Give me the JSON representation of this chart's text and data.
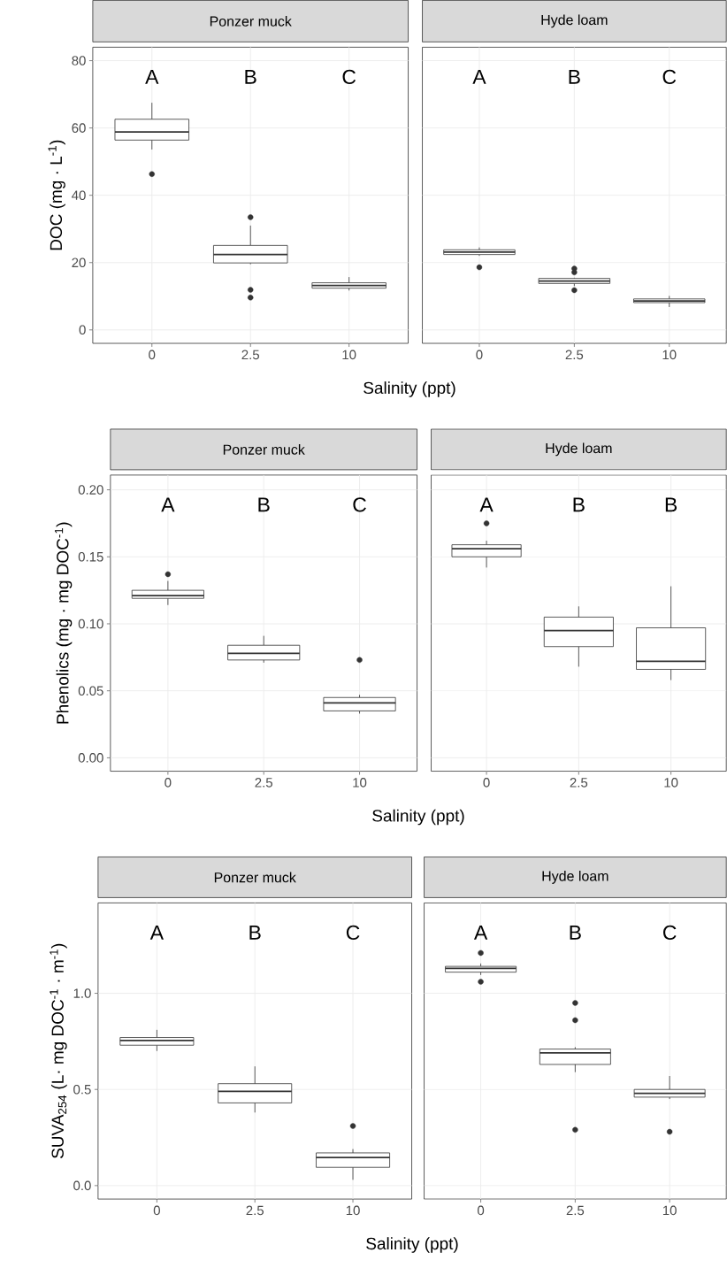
{
  "chart_data": [
    {
      "type": "box",
      "title": "Ponzer muck",
      "xlabel": "Salinity (ppt)",
      "ylabel": "DOC (mg · L$^{-1}$)",
      "categories": [
        "0",
        "2.5",
        "10"
      ],
      "color": "#333333",
      "grid": true,
      "ylim": [
        -4,
        84
      ],
      "yticks": [
        0,
        20,
        40,
        60,
        80
      ],
      "boxes": [
        {
          "low": 53.6,
          "q1": 56.4,
          "median": 58.8,
          "q3": 62.6,
          "high": 67.5,
          "outliers": [
            46.3
          ]
        },
        {
          "low": 19.5,
          "q1": 19.9,
          "median": 22.4,
          "q3": 25.1,
          "high": 31,
          "outliers": [
            33.5,
            11.9,
            9.6
          ]
        },
        {
          "low": 11.7,
          "q1": 12.4,
          "median": 13.2,
          "q3": 14.0,
          "high": 15.7
        }
      ],
      "annotations": [
        "A",
        "B",
        "C"
      ]
    },
    {
      "type": "box",
      "title": "Hyde loam",
      "categories": [
        "0",
        "2.5",
        "10"
      ],
      "color": "#333333",
      "grid": true,
      "tick_labels": "x",
      "ylim": [
        -4,
        84
      ],
      "yticks": [
        0,
        20,
        40,
        60,
        80
      ],
      "boxes": [
        {
          "low": 22.0,
          "q1": 22.4,
          "median": 23.1,
          "q3": 23.8,
          "high": 24.5,
          "outliers": [
            18.6
          ]
        },
        {
          "low": 13.0,
          "q1": 13.8,
          "median": 14.5,
          "q3": 15.3,
          "high": 15.5,
          "outliers": [
            18.2,
            17.1,
            11.8
          ]
        },
        {
          "low": 6.8,
          "q1": 8.1,
          "median": 8.6,
          "q3": 9.2,
          "high": 10.1
        }
      ],
      "annotations": [
        "A",
        "B",
        "C"
      ]
    },
    {
      "type": "box",
      "title": "Ponzer muck",
      "xlabel": "Salinity (ppt)",
      "ylabel": "Phenolics (mg · mg DOC$^{-1}$)",
      "categories": [
        "0",
        "2.5",
        "10"
      ],
      "color": "#333333",
      "grid": true,
      "ylim": [
        -0.01,
        0.211
      ],
      "yticks": [
        {
          "value": 0,
          "label": "0.00"
        },
        {
          "value": 0.05,
          "label": "0.05"
        },
        {
          "value": 0.1,
          "label": "0.10"
        },
        {
          "value": 0.15,
          "label": "0.15"
        },
        {
          "value": 0.2,
          "label": "0.20"
        }
      ],
      "boxes": [
        {
          "low": 0.114,
          "q1": 0.119,
          "median": 0.121,
          "q3": 0.125,
          "high": 0.132,
          "outliers": [
            0.137
          ]
        },
        {
          "low": 0.071,
          "q1": 0.073,
          "median": 0.078,
          "q3": 0.084,
          "high": 0.091
        },
        {
          "low": 0.033,
          "q1": 0.035,
          "median": 0.041,
          "q3": 0.045,
          "high": 0.047,
          "outliers": [
            0.073
          ]
        }
      ],
      "annotations": [
        "A",
        "B",
        "C"
      ]
    },
    {
      "type": "box",
      "title": "Hyde loam",
      "categories": [
        "0",
        "2.5",
        "10"
      ],
      "color": "#333333",
      "grid": true,
      "tick_labels": "x",
      "ylim": [
        -0.01,
        0.211
      ],
      "yticks": [
        0,
        0.05,
        0.1,
        0.15,
        0.2
      ],
      "boxes": [
        {
          "low": 0.142,
          "q1": 0.15,
          "median": 0.156,
          "q3": 0.159,
          "high": 0.162,
          "outliers": [
            0.175
          ]
        },
        {
          "low": 0.068,
          "q1": 0.083,
          "median": 0.095,
          "q3": 0.105,
          "high": 0.113
        },
        {
          "low": 0.058,
          "q1": 0.066,
          "median": 0.072,
          "q3": 0.097,
          "high": 0.128
        }
      ],
      "annotations": [
        "A",
        "B",
        "B"
      ]
    },
    {
      "type": "box",
      "title": "Ponzer muck",
      "xlabel": "Salinity (ppt)",
      "ylabel": "SUVA$_{254}$ (L· mg DOC$^{-1}$ · m$^{-1}$)",
      "categories": [
        "0",
        "2.5",
        "10"
      ],
      "color": "#333333",
      "grid": true,
      "ylim": [
        -0.07,
        1.47
      ],
      "yticks": [
        {
          "value": 0,
          "label": "0.0"
        },
        {
          "value": 0.5,
          "label": "0.5"
        },
        {
          "value": 1,
          "label": "1.0"
        }
      ],
      "boxes": [
        {
          "low": 0.7,
          "q1": 0.73,
          "median": 0.755,
          "q3": 0.77,
          "high": 0.81
        },
        {
          "low": 0.38,
          "q1": 0.43,
          "median": 0.49,
          "q3": 0.53,
          "high": 0.62
        },
        {
          "low": 0.03,
          "q1": 0.095,
          "median": 0.146,
          "q3": 0.17,
          "high": 0.19,
          "outliers": [
            0.31
          ]
        }
      ],
      "annotations": [
        "A",
        "B",
        "C"
      ]
    },
    {
      "type": "box",
      "title": "Hyde loam",
      "categories": [
        "0",
        "2.5",
        "10"
      ],
      "color": "#333333",
      "grid": true,
      "tick_labels": "x",
      "ylim": [
        -0.07,
        1.47
      ],
      "yticks": [
        0,
        0.5,
        1
      ],
      "boxes": [
        {
          "low": 1.095,
          "q1": 1.11,
          "median": 1.13,
          "q3": 1.14,
          "high": 1.155,
          "outliers": [
            1.21,
            1.06
          ]
        },
        {
          "low": 0.59,
          "q1": 0.63,
          "median": 0.69,
          "q3": 0.71,
          "high": 0.72,
          "outliers": [
            0.95,
            0.86,
            0.29
          ]
        },
        {
          "low": 0.45,
          "q1": 0.46,
          "median": 0.48,
          "q3": 0.5,
          "high": 0.57,
          "outliers": [
            0.28
          ]
        }
      ],
      "annotations": [
        "A",
        "B",
        "C"
      ]
    }
  ]
}
